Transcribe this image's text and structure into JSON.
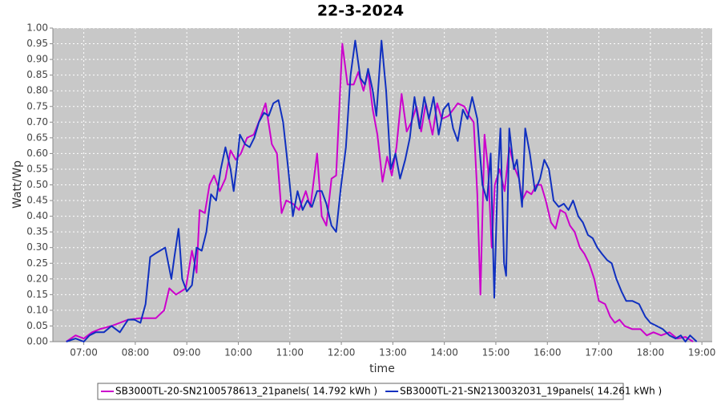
{
  "chart_data": {
    "type": "line",
    "title": "22-3-2024",
    "x_label": "time",
    "y_label": "Watt/Wp",
    "xlim": [
      6.4,
      19.2
    ],
    "ylim": [
      0,
      1
    ],
    "xticks": [
      {
        "value": 7,
        "label": "07:00"
      },
      {
        "value": 8,
        "label": "08:00"
      },
      {
        "value": 9,
        "label": "09:00"
      },
      {
        "value": 10,
        "label": "10:00"
      },
      {
        "value": 11,
        "label": "11:00"
      },
      {
        "value": 12,
        "label": "12:00"
      },
      {
        "value": 13,
        "label": "13:00"
      },
      {
        "value": 14,
        "label": "14:00"
      },
      {
        "value": 15,
        "label": "15:00"
      },
      {
        "value": 16,
        "label": "16:00"
      },
      {
        "value": 17,
        "label": "17:00"
      },
      {
        "value": 18,
        "label": "18:00"
      },
      {
        "value": 19,
        "label": "19:00"
      }
    ],
    "yticks": [
      {
        "value": 0,
        "label": "0.00"
      },
      {
        "value": 0.05,
        "label": "0.05"
      },
      {
        "value": 0.1,
        "label": "0.10"
      },
      {
        "value": 0.15,
        "label": "0.15"
      },
      {
        "value": 0.2,
        "label": "0.20"
      },
      {
        "value": 0.25,
        "label": "0.25"
      },
      {
        "value": 0.3,
        "label": "0.30"
      },
      {
        "value": 0.35,
        "label": "0.35"
      },
      {
        "value": 0.4,
        "label": "0.40"
      },
      {
        "value": 0.45,
        "label": "0.45"
      },
      {
        "value": 0.5,
        "label": "0.50"
      },
      {
        "value": 0.55,
        "label": "0.55"
      },
      {
        "value": 0.6,
        "label": "0.60"
      },
      {
        "value": 0.65,
        "label": "0.65"
      },
      {
        "value": 0.7,
        "label": "0.70"
      },
      {
        "value": 0.75,
        "label": "0.75"
      },
      {
        "value": 0.8,
        "label": "0.80"
      },
      {
        "value": 0.85,
        "label": "0.85"
      },
      {
        "value": 0.9,
        "label": "0.90"
      },
      {
        "value": 0.95,
        "label": "0.95"
      },
      {
        "value": 1,
        "label": "1.00"
      }
    ],
    "grid": true,
    "series": [
      {
        "name": "SB3000TL-20-SN2100578613_21panels( 14.792 kWh )",
        "color": "#cc00cc",
        "x": [
          6.66,
          6.84,
          7.0,
          7.16,
          7.31,
          7.54,
          7.7,
          7.86,
          8.09,
          8.4,
          8.56,
          8.66,
          8.79,
          8.98,
          9.1,
          9.19,
          9.25,
          9.35,
          9.44,
          9.53,
          9.64,
          9.75,
          9.85,
          9.95,
          10.05,
          10.17,
          10.3,
          10.42,
          10.53,
          10.65,
          10.75,
          10.84,
          10.93,
          11.06,
          11.18,
          11.31,
          11.4,
          11.53,
          11.62,
          11.71,
          11.81,
          11.9,
          12.02,
          12.12,
          12.24,
          12.33,
          12.43,
          12.52,
          12.61,
          12.7,
          12.8,
          12.89,
          12.98,
          13.07,
          13.17,
          13.27,
          13.36,
          13.46,
          13.55,
          13.64,
          13.77,
          13.86,
          13.95,
          14.08,
          14.17,
          14.26,
          14.39,
          14.48,
          14.57,
          14.64,
          14.7,
          14.78,
          14.85,
          14.92,
          14.98,
          15.07,
          15.17,
          15.26,
          15.35,
          15.45,
          15.51,
          15.6,
          15.69,
          15.79,
          15.88,
          15.97,
          16.07,
          16.16,
          16.25,
          16.35,
          16.44,
          16.53,
          16.63,
          16.72,
          16.81,
          16.91,
          17.0,
          17.12,
          17.22,
          17.31,
          17.4,
          17.5,
          17.65,
          17.81,
          17.93,
          18.06,
          18.21,
          18.37,
          18.52,
          18.68,
          18.83
        ],
        "values": [
          0,
          0.02,
          0.01,
          0.03,
          0.04,
          0.05,
          0.06,
          0.07,
          0.075,
          0.075,
          0.1,
          0.17,
          0.15,
          0.17,
          0.29,
          0.22,
          0.42,
          0.41,
          0.5,
          0.53,
          0.48,
          0.52,
          0.61,
          0.58,
          0.6,
          0.65,
          0.66,
          0.71,
          0.76,
          0.63,
          0.6,
          0.41,
          0.45,
          0.44,
          0.42,
          0.48,
          0.43,
          0.6,
          0.4,
          0.37,
          0.52,
          0.53,
          0.95,
          0.82,
          0.82,
          0.86,
          0.8,
          0.86,
          0.74,
          0.66,
          0.51,
          0.59,
          0.53,
          0.62,
          0.79,
          0.67,
          0.7,
          0.75,
          0.67,
          0.76,
          0.66,
          0.76,
          0.71,
          0.72,
          0.74,
          0.76,
          0.75,
          0.72,
          0.7,
          0.47,
          0.15,
          0.66,
          0.55,
          0.3,
          0.5,
          0.55,
          0.48,
          0.62,
          0.56,
          0.52,
          0.45,
          0.48,
          0.47,
          0.5,
          0.5,
          0.45,
          0.38,
          0.36,
          0.42,
          0.41,
          0.37,
          0.35,
          0.3,
          0.28,
          0.25,
          0.2,
          0.13,
          0.12,
          0.08,
          0.06,
          0.07,
          0.05,
          0.04,
          0.04,
          0.02,
          0.03,
          0.02,
          0.03,
          0.01,
          0.015,
          0
        ]
      },
      {
        "name": "SB3000TL-21-SN2130032031_19panels( 14.261 kWh )",
        "color": "#1030c0",
        "x": [
          6.66,
          6.84,
          7.0,
          7.11,
          7.23,
          7.39,
          7.54,
          7.7,
          7.86,
          7.98,
          8.1,
          8.2,
          8.29,
          8.38,
          8.48,
          8.58,
          8.7,
          8.76,
          8.84,
          8.91,
          9.0,
          9.1,
          9.19,
          9.29,
          9.38,
          9.47,
          9.57,
          9.66,
          9.75,
          9.85,
          9.91,
          9.97,
          10.03,
          10.13,
          10.22,
          10.31,
          10.4,
          10.5,
          10.59,
          10.68,
          10.78,
          10.87,
          10.97,
          11.06,
          11.15,
          11.25,
          11.34,
          11.43,
          11.53,
          11.62,
          11.71,
          11.81,
          11.9,
          11.99,
          12.09,
          12.18,
          12.27,
          12.37,
          12.46,
          12.52,
          12.61,
          12.68,
          12.78,
          12.87,
          12.96,
          13.05,
          13.14,
          13.24,
          13.33,
          13.42,
          13.52,
          13.61,
          13.7,
          13.79,
          13.89,
          13.98,
          14.08,
          14.17,
          14.26,
          14.36,
          14.45,
          14.54,
          14.64,
          14.74,
          14.83,
          14.9,
          14.97,
          15.03,
          15.09,
          15.16,
          15.2,
          15.26,
          15.35,
          15.41,
          15.51,
          15.57,
          15.66,
          15.76,
          15.86,
          15.94,
          16.03,
          16.12,
          16.22,
          16.32,
          16.41,
          16.5,
          16.6,
          16.69,
          16.79,
          16.88,
          16.97,
          17.06,
          17.16,
          17.25,
          17.34,
          17.44,
          17.53,
          17.65,
          17.78,
          17.9,
          18.0,
          18.12,
          18.24,
          18.37,
          18.49,
          18.59,
          18.68,
          18.77,
          18.9
        ],
        "values": [
          0,
          0.01,
          0,
          0.02,
          0.03,
          0.03,
          0.05,
          0.03,
          0.07,
          0.07,
          0.06,
          0.12,
          0.27,
          0.28,
          0.29,
          0.3,
          0.2,
          0.27,
          0.36,
          0.2,
          0.16,
          0.18,
          0.3,
          0.29,
          0.35,
          0.47,
          0.45,
          0.55,
          0.62,
          0.55,
          0.48,
          0.56,
          0.66,
          0.63,
          0.62,
          0.65,
          0.7,
          0.73,
          0.72,
          0.76,
          0.77,
          0.7,
          0.55,
          0.4,
          0.48,
          0.42,
          0.45,
          0.43,
          0.48,
          0.48,
          0.44,
          0.37,
          0.35,
          0.49,
          0.62,
          0.85,
          0.96,
          0.84,
          0.82,
          0.87,
          0.8,
          0.72,
          0.96,
          0.8,
          0.55,
          0.6,
          0.52,
          0.58,
          0.65,
          0.78,
          0.68,
          0.78,
          0.71,
          0.78,
          0.66,
          0.74,
          0.76,
          0.68,
          0.64,
          0.74,
          0.71,
          0.78,
          0.71,
          0.5,
          0.45,
          0.6,
          0.14,
          0.5,
          0.68,
          0.25,
          0.21,
          0.68,
          0.55,
          0.58,
          0.43,
          0.68,
          0.6,
          0.48,
          0.52,
          0.58,
          0.55,
          0.45,
          0.43,
          0.44,
          0.42,
          0.45,
          0.4,
          0.38,
          0.34,
          0.33,
          0.3,
          0.28,
          0.26,
          0.25,
          0.2,
          0.16,
          0.13,
          0.13,
          0.12,
          0.08,
          0.06,
          0.05,
          0.04,
          0.02,
          0.01,
          0.02,
          0,
          0.02,
          0
        ]
      }
    ]
  }
}
